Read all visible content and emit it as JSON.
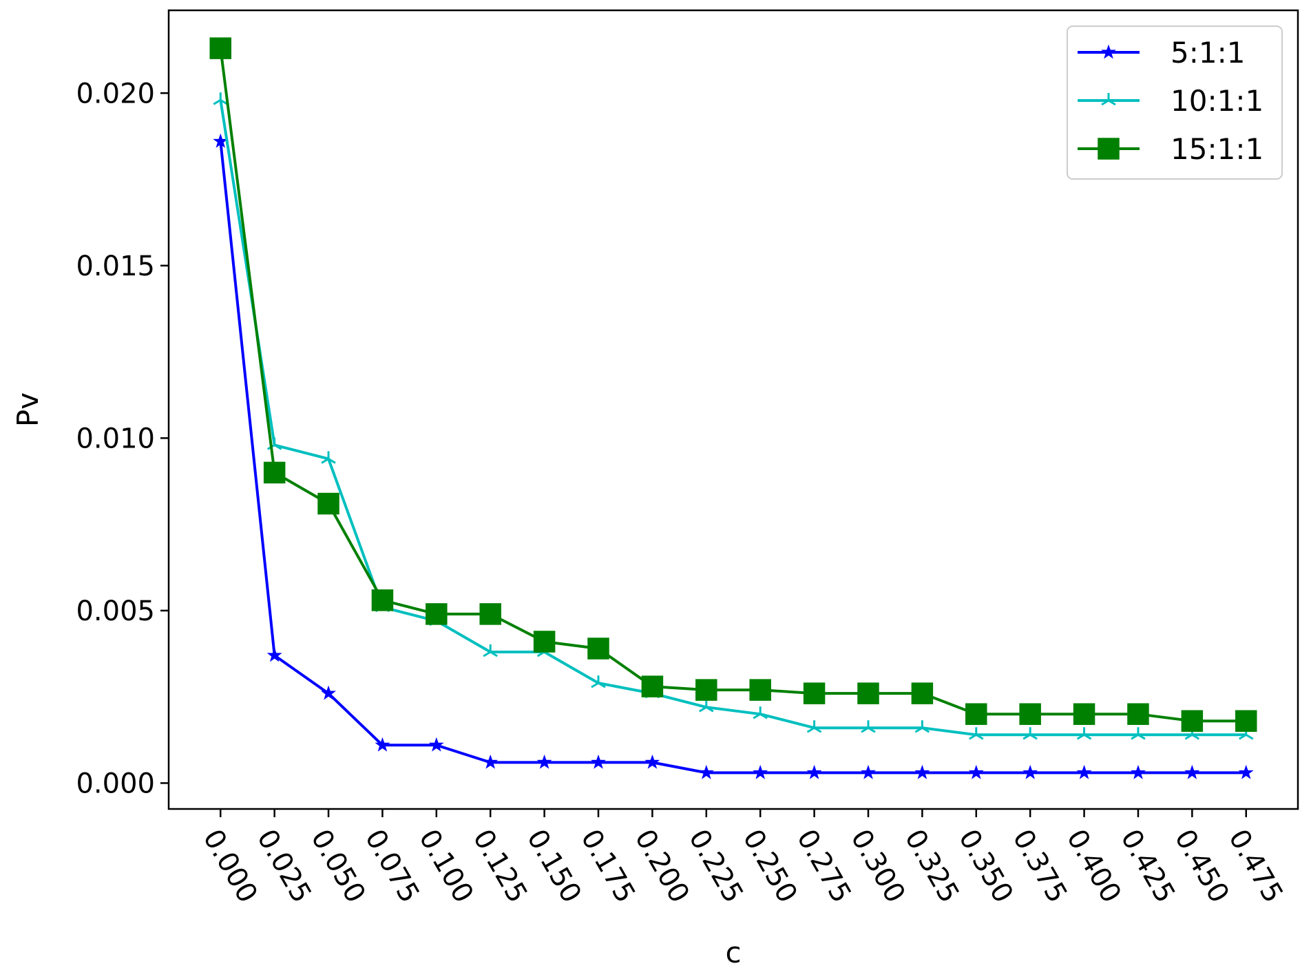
{
  "chart_data": {
    "type": "line",
    "xlabel": "c",
    "ylabel": "Pv",
    "x": [
      0.0,
      0.025,
      0.05,
      0.075,
      0.1,
      0.125,
      0.15,
      0.175,
      0.2,
      0.225,
      0.25,
      0.275,
      0.3,
      0.325,
      0.35,
      0.375,
      0.4,
      0.425,
      0.45,
      0.475
    ],
    "x_tick_labels": [
      "0.000",
      "0.025",
      "0.050",
      "0.075",
      "0.100",
      "0.125",
      "0.150",
      "0.175",
      "0.200",
      "0.225",
      "0.250",
      "0.275",
      "0.300",
      "0.325",
      "0.350",
      "0.375",
      "0.400",
      "0.425",
      "0.450",
      "0.475"
    ],
    "y_ticks": [
      0.0,
      0.005,
      0.01,
      0.015,
      0.02
    ],
    "y_tick_labels": [
      "0.000",
      "0.005",
      "0.010",
      "0.015",
      "0.020"
    ],
    "xlim": [
      -0.024,
      0.499
    ],
    "ylim": [
      -0.00075,
      0.0224
    ],
    "grid": false,
    "legend_position": "top-right",
    "series": [
      {
        "name": "5:1:1",
        "color": "#0000ff",
        "marker": "star",
        "values": [
          0.0186,
          0.0037,
          0.0026,
          0.0011,
          0.0011,
          0.0006,
          0.0006,
          0.0006,
          0.0006,
          0.0003,
          0.0003,
          0.0003,
          0.0003,
          0.0003,
          0.0003,
          0.0003,
          0.0003,
          0.0003,
          0.0003,
          0.0003
        ]
      },
      {
        "name": "10:1:1",
        "color": "#00bfbf",
        "marker": "tri",
        "values": [
          0.0198,
          0.0098,
          0.0094,
          0.0051,
          0.0047,
          0.0038,
          0.0038,
          0.0029,
          0.0026,
          0.0022,
          0.002,
          0.0016,
          0.0016,
          0.0016,
          0.0014,
          0.0014,
          0.0014,
          0.0014,
          0.0014,
          0.0014
        ]
      },
      {
        "name": "15:1:1",
        "color": "#008000",
        "marker": "square",
        "values": [
          0.0213,
          0.009,
          0.0081,
          0.0053,
          0.0049,
          0.0049,
          0.0041,
          0.0039,
          0.0028,
          0.0027,
          0.0027,
          0.0026,
          0.0026,
          0.0026,
          0.002,
          0.002,
          0.002,
          0.002,
          0.0018,
          0.0018
        ]
      }
    ]
  }
}
